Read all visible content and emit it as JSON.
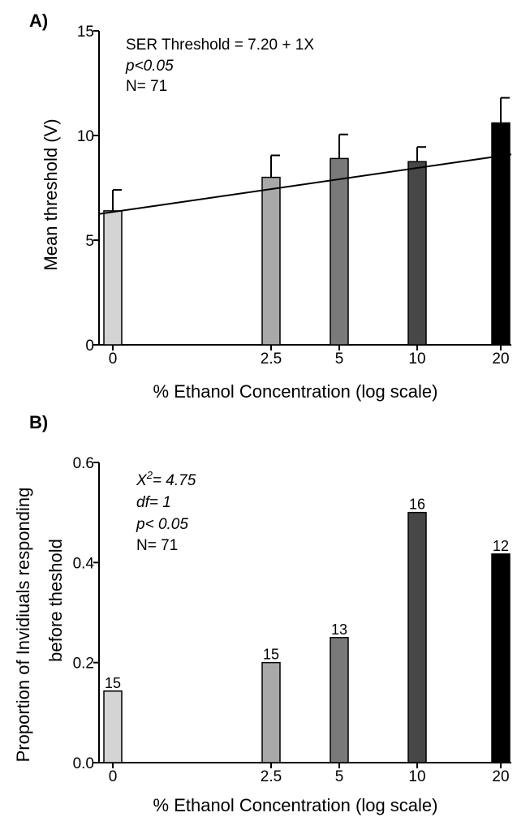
{
  "chart_data": [
    {
      "type": "bar",
      "panel_label": "A)",
      "categories": [
        "0",
        "2.5",
        "5",
        "10",
        "20"
      ],
      "values": [
        6.4,
        8.0,
        8.9,
        8.75,
        10.6
      ],
      "errors": [
        1.0,
        1.05,
        1.15,
        0.7,
        1.2
      ],
      "colors": [
        "#d4d4d4",
        "#a9a9a9",
        "#7a7a7a",
        "#474747",
        "#000000"
      ],
      "xlabel": "% Ethanol Concentration (log scale)",
      "ylabel": "Mean threshold (V)",
      "ylim": [
        0,
        15
      ],
      "yticks": [
        "0",
        "5",
        "10",
        "15"
      ],
      "xscale": "log",
      "fit_line": [
        6.25,
        9.1
      ],
      "annotations": {
        "equation": "SER Threshold = 7.20 + 1X",
        "p": "p<0.05",
        "n": "N= 71"
      }
    },
    {
      "type": "bar",
      "panel_label": "B)",
      "categories": [
        "0",
        "2.5",
        "5",
        "10",
        "20"
      ],
      "values": [
        0.143,
        0.2,
        0.25,
        0.5,
        0.417
      ],
      "labels": [
        "15",
        "15",
        "13",
        "16",
        "12"
      ],
      "colors": [
        "#d4d4d4",
        "#a9a9a9",
        "#7a7a7a",
        "#474747",
        "#000000"
      ],
      "xlabel": "% Ethanol Concentration (log scale)",
      "ylabel_lines": [
        "Proportion of  Invidiuals responding",
        "before theshold"
      ],
      "ylim": [
        0,
        0.6
      ],
      "yticks": [
        "0.0",
        "0.2",
        "0.4",
        "0.6"
      ],
      "xscale": "log",
      "annotations": {
        "chi": "X",
        "chi_sup": "2",
        "chi_rest": "= 4.75",
        "df": "df= 1",
        "p": "p< 0.05",
        "n": "N= 71"
      }
    }
  ]
}
